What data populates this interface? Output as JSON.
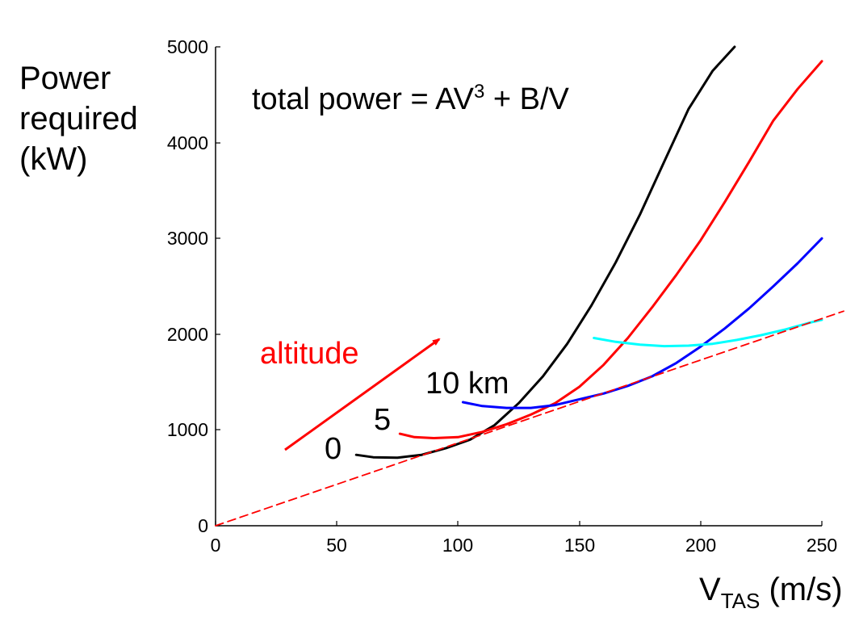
{
  "chart_data": {
    "type": "line",
    "xlim": [
      0,
      250
    ],
    "ylim": [
      0,
      5000
    ],
    "x_ticks": [
      "0",
      "50",
      "100",
      "150",
      "200",
      "250"
    ],
    "y_ticks": [
      "0",
      "1000",
      "2000",
      "3000",
      "4000",
      "5000"
    ],
    "ylabel_lines": [
      "Power",
      "required",
      "(kW)"
    ],
    "xlabel_main": "V",
    "xlabel_sub": "TAS",
    "xlabel_unit": " (m/s)",
    "annotation": {
      "formula_prefix": "total power = AV",
      "formula_exp": "3",
      "formula_suffix": " + B/V",
      "arrow_label": "altitude",
      "altitude_labels": [
        "0",
        "5",
        "10 km"
      ]
    },
    "grid": false,
    "series": [
      {
        "color": "#000000",
        "line_style": "solid",
        "points": [
          [
            58,
            740
          ],
          [
            65,
            715
          ],
          [
            75,
            710
          ],
          [
            85,
            740
          ],
          [
            95,
            810
          ],
          [
            105,
            900
          ],
          [
            115,
            1050
          ],
          [
            125,
            1280
          ],
          [
            135,
            1560
          ],
          [
            145,
            1900
          ],
          [
            155,
            2300
          ],
          [
            165,
            2750
          ],
          [
            175,
            3250
          ],
          [
            185,
            3800
          ],
          [
            195,
            4350
          ],
          [
            205,
            4750
          ],
          [
            214,
            5000
          ]
        ]
      },
      {
        "color": "#ff0000",
        "line_style": "solid",
        "points": [
          [
            76,
            960
          ],
          [
            82,
            925
          ],
          [
            90,
            915
          ],
          [
            100,
            925
          ],
          [
            110,
            980
          ],
          [
            120,
            1060
          ],
          [
            130,
            1160
          ],
          [
            140,
            1280
          ],
          [
            150,
            1450
          ],
          [
            160,
            1680
          ],
          [
            170,
            1960
          ],
          [
            180,
            2280
          ],
          [
            190,
            2620
          ],
          [
            200,
            2980
          ],
          [
            210,
            3380
          ],
          [
            220,
            3800
          ],
          [
            230,
            4230
          ],
          [
            240,
            4560
          ],
          [
            250,
            4850
          ]
        ]
      },
      {
        "color": "#0000ff",
        "line_style": "solid",
        "points": [
          [
            102,
            1290
          ],
          [
            110,
            1250
          ],
          [
            120,
            1230
          ],
          [
            130,
            1230
          ],
          [
            140,
            1260
          ],
          [
            150,
            1320
          ],
          [
            160,
            1380
          ],
          [
            170,
            1460
          ],
          [
            180,
            1560
          ],
          [
            190,
            1700
          ],
          [
            200,
            1870
          ],
          [
            210,
            2060
          ],
          [
            220,
            2270
          ],
          [
            230,
            2500
          ],
          [
            240,
            2740
          ],
          [
            250,
            3000
          ]
        ]
      },
      {
        "color": "#00ffff",
        "line_style": "solid",
        "points": [
          [
            156,
            1960
          ],
          [
            165,
            1920
          ],
          [
            175,
            1890
          ],
          [
            185,
            1875
          ],
          [
            195,
            1880
          ],
          [
            205,
            1900
          ],
          [
            215,
            1940
          ],
          [
            225,
            1990
          ],
          [
            235,
            2050
          ],
          [
            245,
            2120
          ],
          [
            250,
            2150
          ]
        ]
      },
      {
        "color": "#ff0000",
        "line_style": "dashed",
        "points": [
          [
            0,
            0
          ],
          [
            259,
            2240
          ]
        ]
      }
    ]
  }
}
